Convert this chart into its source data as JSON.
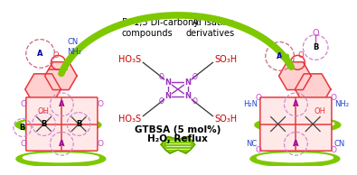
{
  "background_color": "#ffffff",
  "green": "#7ec800",
  "green_dark": "#5a9600",
  "text_B_label": "B: 1,3 Di-carbonyl\ncompounds",
  "text_A_label": "A: Isatine\nderivatives",
  "text_gtbsa": "GTBSA (5 mol%)",
  "text_reflux": "H₂O, Reflux",
  "so3h_left_top": "HO₃S",
  "so3h_right_top": "SO₃H",
  "so3h_left_bot": "HO₃S",
  "so3h_right_bot": "SO₃H",
  "red": "#e8383d",
  "pink_ring": "#f0a0a0",
  "purple": "#cc44cc",
  "blue": "#2244cc",
  "N_color": "#9933bb",
  "O_color": "#9933bb",
  "dashed_pink": "#cc7788",
  "dashed_purple": "#cc88cc"
}
